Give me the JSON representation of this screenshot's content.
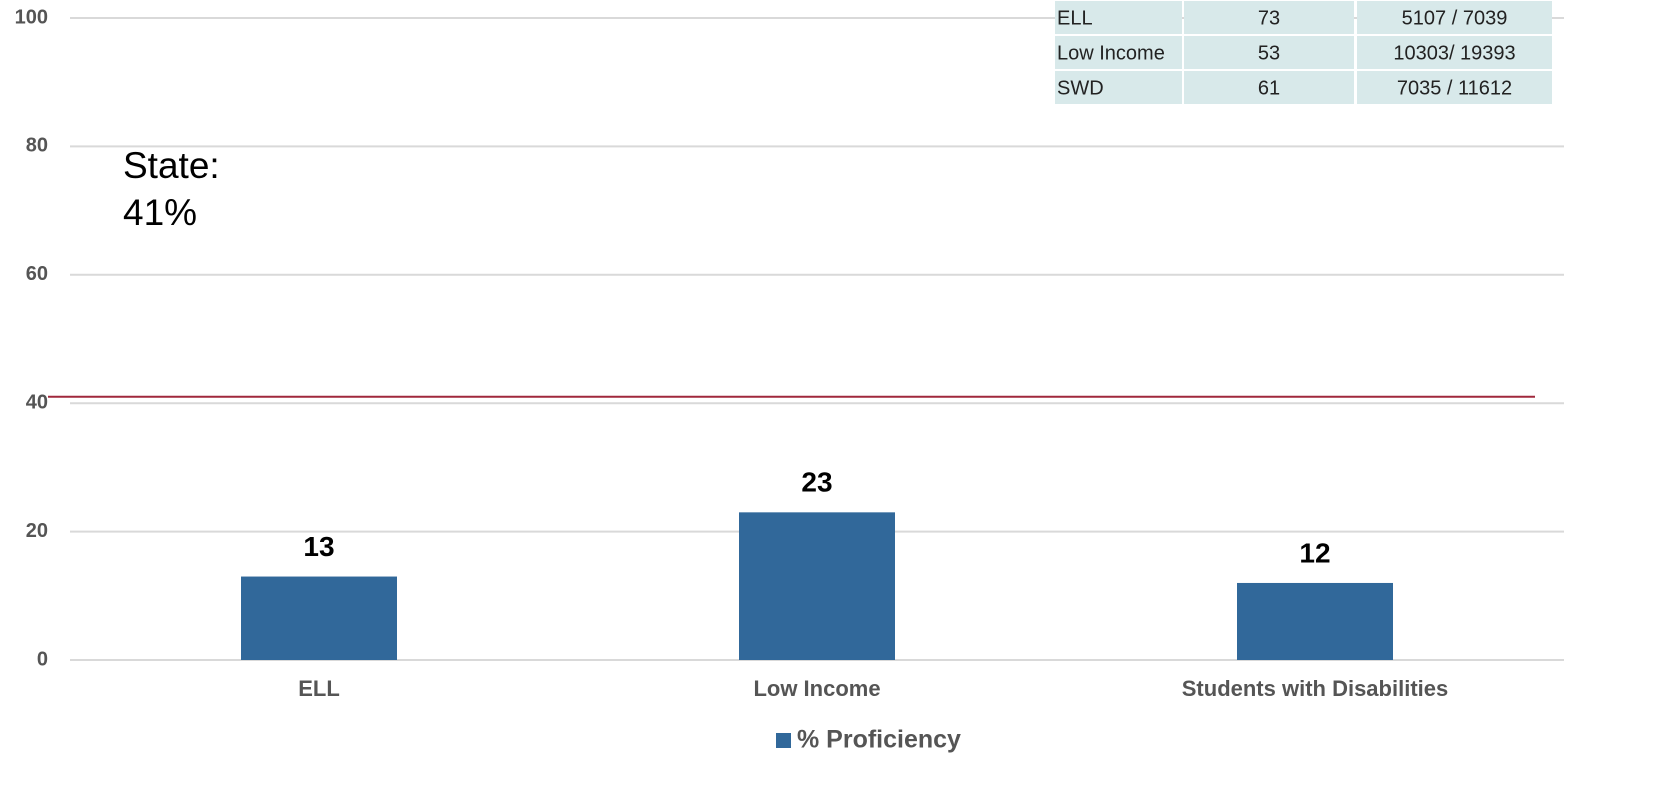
{
  "chart_data": {
    "type": "bar",
    "categories": [
      "ELL",
      "Low Income",
      "Students with Disabilities"
    ],
    "series": [
      {
        "name": "% Proficiency",
        "color": "#31689a",
        "values": [
          13,
          23,
          12
        ]
      }
    ],
    "ylim": [
      0,
      100
    ],
    "yticks": [
      0,
      20,
      40,
      60,
      80,
      100
    ],
    "grid": true,
    "legend": "bottom",
    "annotation": "State:",
    "reference_line": {
      "value": 41,
      "label": "41%",
      "color": "#a0283c"
    }
  },
  "table": {
    "rows": [
      [
        "ELL",
        "73",
        "5107 / 7039"
      ],
      [
        "Low Income",
        "53",
        "10303/ 19393"
      ],
      [
        "SWD",
        "61",
        "7035 / 11612"
      ]
    ]
  }
}
